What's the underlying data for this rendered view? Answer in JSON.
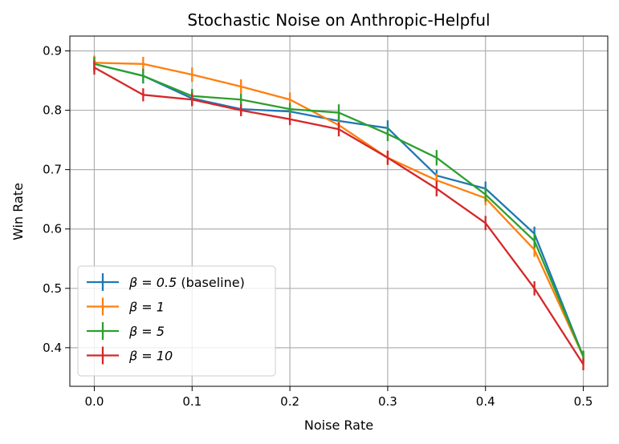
{
  "chart_data": {
    "type": "line",
    "title": "Stochastic Noise on Anthropic-Helpful",
    "xlabel": "Noise Rate",
    "ylabel": "Win Rate",
    "xlim": [
      -0.025,
      0.525
    ],
    "ylim": [
      0.335,
      0.925
    ],
    "xticks": [
      0.0,
      0.1,
      0.2,
      0.3,
      0.4,
      0.5
    ],
    "xtick_labels": [
      "0.0",
      "0.1",
      "0.2",
      "0.3",
      "0.4",
      "0.5"
    ],
    "yticks": [
      0.4,
      0.5,
      0.6,
      0.7,
      0.8,
      0.9
    ],
    "ytick_labels": [
      "0.4",
      "0.5",
      "0.6",
      "0.7",
      "0.8",
      "0.9"
    ],
    "grid": true,
    "legend_position": "lower-left",
    "x": [
      0.0,
      0.05,
      0.1,
      0.15,
      0.2,
      0.25,
      0.3,
      0.35,
      0.4,
      0.45,
      0.5
    ],
    "series": [
      {
        "name_prefix": "β = 0.5",
        "name_suffix": " (baseline)",
        "color": "#1f77b4",
        "values": [
          0.878,
          0.858,
          0.82,
          0.802,
          0.798,
          0.782,
          0.77,
          0.69,
          0.668,
          0.592,
          0.385
        ],
        "errors": [
          0.012,
          0.013,
          0.012,
          0.01,
          0.01,
          0.012,
          0.013,
          0.01,
          0.012,
          0.012,
          0.01
        ]
      },
      {
        "name_prefix": "β = 1",
        "name_suffix": "",
        "color": "#ff7f0e",
        "values": [
          0.88,
          0.878,
          0.86,
          0.84,
          0.818,
          0.775,
          0.72,
          0.682,
          0.652,
          0.565,
          0.385
        ],
        "errors": [
          0.012,
          0.012,
          0.012,
          0.012,
          0.012,
          0.012,
          0.012,
          0.012,
          0.012,
          0.012,
          0.01
        ]
      },
      {
        "name_prefix": "β = 5",
        "name_suffix": "",
        "color": "#2ca02c",
        "values": [
          0.878,
          0.858,
          0.824,
          0.818,
          0.802,
          0.796,
          0.76,
          0.72,
          0.658,
          0.58,
          0.385
        ],
        "errors": [
          0.012,
          0.012,
          0.012,
          0.01,
          0.01,
          0.014,
          0.012,
          0.013,
          0.012,
          0.012,
          0.01
        ]
      },
      {
        "name_prefix": "β = 10",
        "name_suffix": "",
        "color": "#d62728",
        "values": [
          0.872,
          0.826,
          0.818,
          0.8,
          0.785,
          0.768,
          0.72,
          0.668,
          0.61,
          0.5,
          0.372
        ],
        "errors": [
          0.012,
          0.011,
          0.011,
          0.01,
          0.01,
          0.012,
          0.012,
          0.013,
          0.012,
          0.012,
          0.01
        ]
      }
    ]
  }
}
